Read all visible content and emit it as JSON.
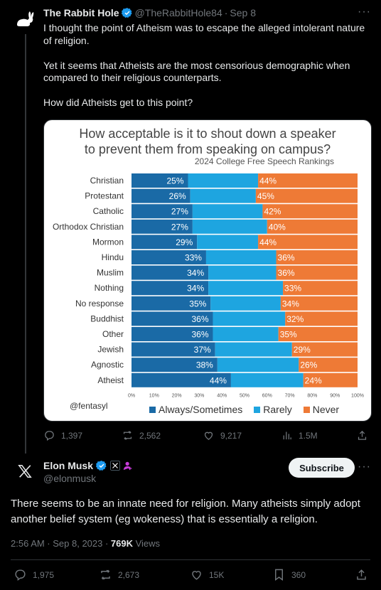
{
  "tweet1": {
    "name": "The Rabbit Hole",
    "handle": "@TheRabbitHole84",
    "dot": "·",
    "date": "Sep 8",
    "paragraphs": [
      "I thought the point of Atheism was to escape the alleged intolerant nature of religion.",
      "Yet it seems that Atheists are the most censorious demographic when compared to their religious counterparts.",
      "How did Atheists get to this point?"
    ],
    "actions": {
      "replies": "1,397",
      "reposts": "2,562",
      "likes": "9,217",
      "views": "1.5M"
    }
  },
  "chart_data": {
    "type": "bar",
    "stacked": true,
    "orientation": "horizontal",
    "title_line1": "How acceptable is it to shout down a speaker",
    "title_line2": "to prevent them from speaking on campus?",
    "subtitle": "2024 College Free Speech Rankings",
    "source": "@fentasyl",
    "categories": [
      "Christian",
      "Protestant",
      "Catholic",
      "Orthodox Christian",
      "Mormon",
      "Hindu",
      "Muslim",
      "Nothing",
      "No response",
      "Buddhist",
      "Other",
      "Jewish",
      "Agnostic",
      "Atheist"
    ],
    "series": [
      {
        "name": "Always/Sometimes",
        "color": "#1a6aa6",
        "values": [
          25,
          26,
          27,
          27,
          29,
          33,
          34,
          34,
          35,
          36,
          36,
          37,
          38,
          44
        ]
      },
      {
        "name": "Rarely",
        "color": "#1ea5e0",
        "values": [
          31,
          29,
          31,
          33,
          27,
          31,
          30,
          33,
          31,
          32,
          29,
          34,
          36,
          32
        ]
      },
      {
        "name": "Never",
        "color": "#ee7a36",
        "values": [
          44,
          45,
          42,
          40,
          44,
          36,
          36,
          33,
          34,
          32,
          35,
          29,
          26,
          24
        ]
      }
    ],
    "label_series": [
      "Always/Sometimes",
      "Never"
    ],
    "xticks": [
      "0%",
      "10%",
      "20%",
      "30%",
      "40%",
      "50%",
      "60%",
      "70%",
      "80%",
      "90%",
      "100%"
    ],
    "xlim": [
      0,
      100
    ],
    "legend_position": "bottom"
  },
  "tweet2": {
    "name": "Elon Musk",
    "handle": "@elonmusk",
    "subscribe_label": "Subscribe",
    "body": "There seems to be an innate need for religion. Many atheists simply adopt another belief system (eg wokeness) that is essentially a religion.",
    "time": "2:56 AM · Sep 8, 2023 · ",
    "views_count": "769K",
    "views_label": " Views",
    "actions": {
      "replies": "1,975",
      "reposts": "2,673",
      "likes": "15K",
      "bookmarks": "360"
    }
  }
}
